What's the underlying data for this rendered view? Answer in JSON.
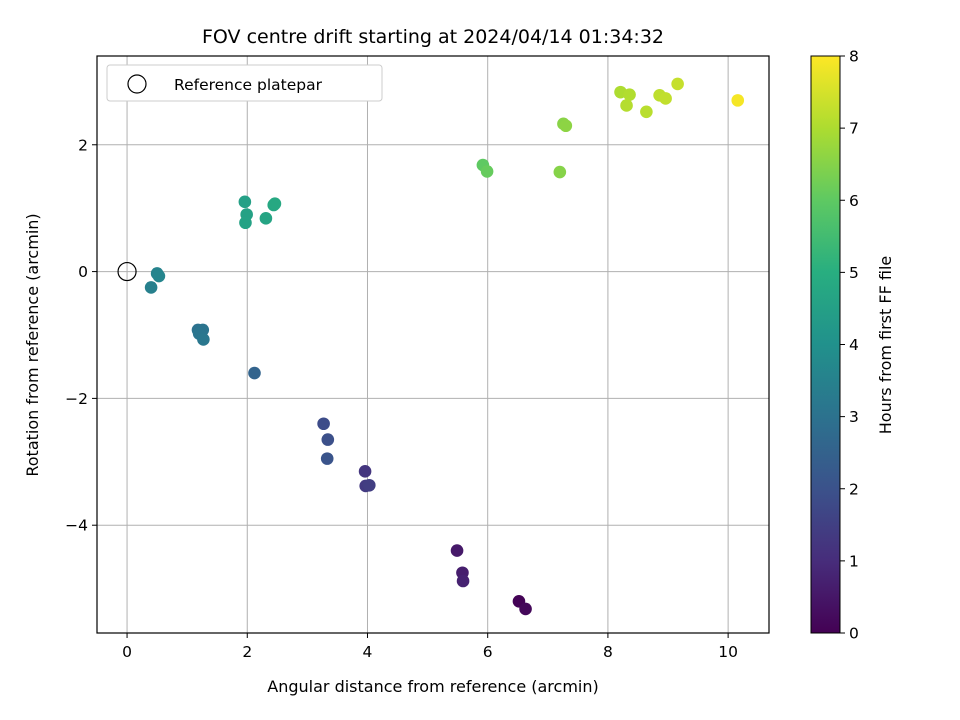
{
  "chart_data": {
    "type": "scatter",
    "title": "FOV centre drift starting at 2024/04/14 01:34:32",
    "xlabel": "Angular distance from reference (arcmin)",
    "ylabel": "Rotation from reference (arcmin)",
    "xlim": [
      -0.5,
      10.68
    ],
    "ylim": [
      -5.7,
      3.4
    ],
    "xticks": [
      0,
      2,
      4,
      6,
      8,
      10
    ],
    "yticks": [
      -4,
      -2,
      0,
      2
    ],
    "grid": true,
    "legend": {
      "position": "top-left",
      "entries": [
        "Reference platepar"
      ]
    },
    "reference_point": {
      "x": 0,
      "y": 0
    },
    "colorbar": {
      "label": "Hours from first FF file",
      "colormap": "viridis",
      "range": [
        0,
        8
      ],
      "ticks": [
        0,
        1,
        2,
        3,
        4,
        5,
        6,
        7,
        8
      ]
    },
    "points": [
      {
        "x": 6.52,
        "y": -5.2,
        "hours": 0.05
      },
      {
        "x": 6.63,
        "y": -5.32,
        "hours": 0.15
      },
      {
        "x": 5.49,
        "y": -4.4,
        "hours": 0.55
      },
      {
        "x": 5.58,
        "y": -4.75,
        "hours": 0.65
      },
      {
        "x": 5.59,
        "y": -4.88,
        "hours": 0.75
      },
      {
        "x": 3.96,
        "y": -3.15,
        "hours": 1.25
      },
      {
        "x": 3.97,
        "y": -3.38,
        "hours": 1.35
      },
      {
        "x": 4.03,
        "y": -3.37,
        "hours": 1.45
      },
      {
        "x": 3.27,
        "y": -2.4,
        "hours": 1.85
      },
      {
        "x": 3.34,
        "y": -2.65,
        "hours": 1.95
      },
      {
        "x": 3.33,
        "y": -2.95,
        "hours": 2.05
      },
      {
        "x": 2.12,
        "y": -1.6,
        "hours": 2.55
      },
      {
        "x": 1.18,
        "y": -0.92,
        "hours": 3.0
      },
      {
        "x": 1.26,
        "y": -0.92,
        "hours": 3.05
      },
      {
        "x": 1.2,
        "y": -0.98,
        "hours": 3.1
      },
      {
        "x": 1.27,
        "y": -1.07,
        "hours": 3.15
      },
      {
        "x": 0.4,
        "y": -0.25,
        "hours": 3.45
      },
      {
        "x": 0.5,
        "y": -0.03,
        "hours": 3.55
      },
      {
        "x": 0.53,
        "y": -0.07,
        "hours": 3.6
      },
      {
        "x": 1.96,
        "y": 1.1,
        "hours": 4.5
      },
      {
        "x": 1.99,
        "y": 0.9,
        "hours": 4.55
      },
      {
        "x": 1.97,
        "y": 0.77,
        "hours": 4.6
      },
      {
        "x": 2.31,
        "y": 0.84,
        "hours": 4.65
      },
      {
        "x": 2.44,
        "y": 1.05,
        "hours": 4.75
      },
      {
        "x": 2.46,
        "y": 1.07,
        "hours": 4.8
      },
      {
        "x": 5.92,
        "y": 1.68,
        "hours": 6.0
      },
      {
        "x": 5.99,
        "y": 1.58,
        "hours": 6.1
      },
      {
        "x": 7.2,
        "y": 1.57,
        "hours": 6.5
      },
      {
        "x": 7.26,
        "y": 2.33,
        "hours": 6.55
      },
      {
        "x": 7.3,
        "y": 2.3,
        "hours": 6.6
      },
      {
        "x": 8.21,
        "y": 2.83,
        "hours": 7.0
      },
      {
        "x": 8.36,
        "y": 2.79,
        "hours": 7.05
      },
      {
        "x": 8.31,
        "y": 2.62,
        "hours": 7.1
      },
      {
        "x": 8.64,
        "y": 2.52,
        "hours": 7.15
      },
      {
        "x": 8.86,
        "y": 2.78,
        "hours": 7.2
      },
      {
        "x": 8.96,
        "y": 2.73,
        "hours": 7.25
      },
      {
        "x": 9.16,
        "y": 2.96,
        "hours": 7.3
      },
      {
        "x": 10.16,
        "y": 2.7,
        "hours": 7.9
      }
    ]
  }
}
